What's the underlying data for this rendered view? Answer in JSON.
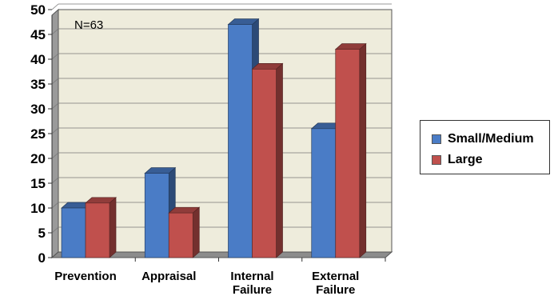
{
  "chart_data": {
    "type": "bar",
    "categories": [
      [
        "Prevention"
      ],
      [
        "Appraisal"
      ],
      [
        "Internal",
        "Failure"
      ],
      [
        "External",
        "Failure"
      ]
    ],
    "series": [
      {
        "name": "Small/Medium",
        "values": [
          10,
          17,
          47,
          26
        ],
        "color": "#4a7cc6"
      },
      {
        "name": "Large",
        "values": [
          11,
          9,
          38,
          42
        ],
        "color": "#c0504d"
      }
    ],
    "ylim": [
      0,
      50
    ],
    "yticks": [
      0,
      5,
      10,
      15,
      20,
      25,
      30,
      35,
      40,
      45,
      50
    ],
    "annotation": "N=63",
    "legend_position": "right",
    "grid": true,
    "background": "#eeecdc"
  }
}
